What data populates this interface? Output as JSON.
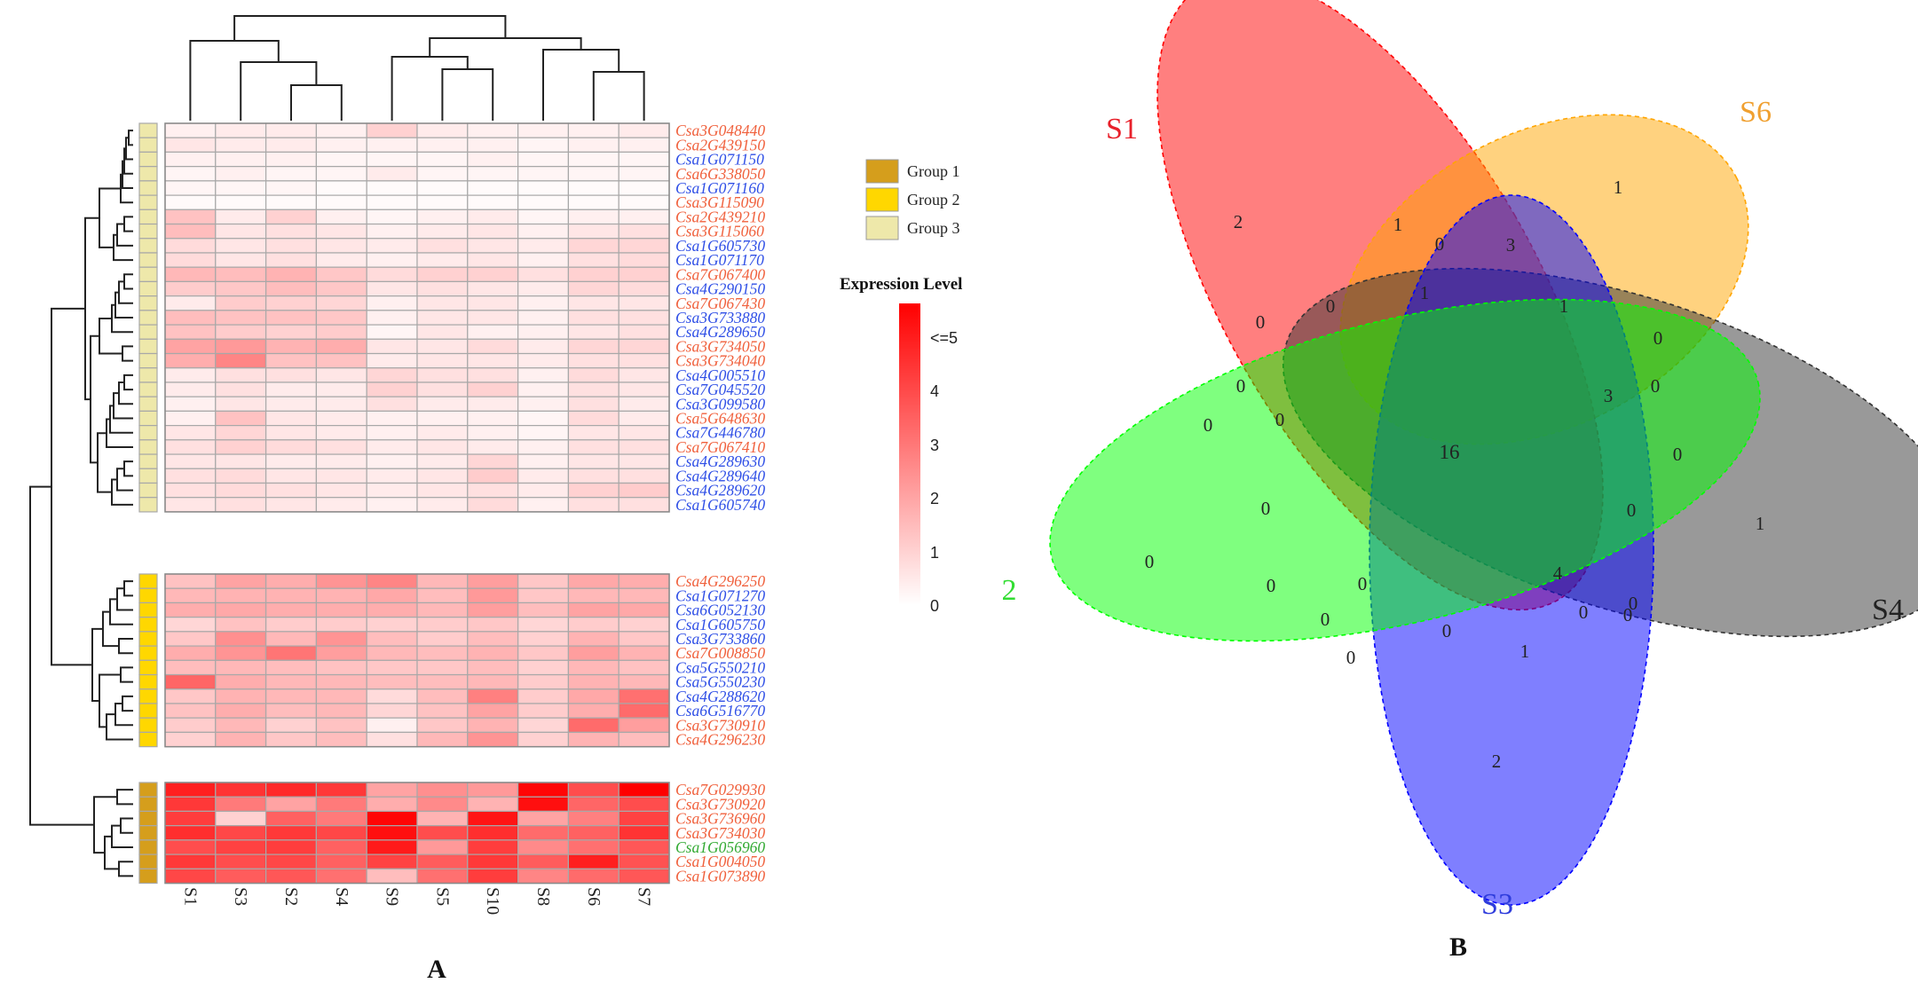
{
  "chart_data": [
    {
      "type": "heatmap",
      "panel_label": "A",
      "columns": [
        "S1",
        "S3",
        "S2",
        "S4",
        "S9",
        "S5",
        "S10",
        "S8",
        "S6",
        "S7"
      ],
      "rows": [
        {
          "gene": "Csa3G048440",
          "group": "Group 3",
          "label_color": "#f0603c",
          "values": [
            0.3,
            0.4,
            0.4,
            0.3,
            0.9,
            0.4,
            0.3,
            0.3,
            0.3,
            0.4
          ]
        },
        {
          "gene": "Csa2G439150",
          "group": "Group 3",
          "label_color": "#f0603c",
          "values": [
            0.5,
            0.4,
            0.4,
            0.3,
            0.3,
            0.3,
            0.3,
            0.2,
            0.3,
            0.3
          ]
        },
        {
          "gene": "Csa1G071150",
          "group": "Group 3",
          "label_color": "#2f4fe6",
          "values": [
            0.3,
            0.3,
            0.3,
            0.2,
            0.2,
            0.2,
            0.3,
            0.2,
            0.2,
            0.2
          ]
        },
        {
          "gene": "Csa6G338050",
          "group": "Group 3",
          "label_color": "#f0603c",
          "values": [
            0.2,
            0.3,
            0.2,
            0.2,
            0.4,
            0.2,
            0.2,
            0.2,
            0.2,
            0.2
          ]
        },
        {
          "gene": "Csa1G071160",
          "group": "Group 3",
          "label_color": "#2f4fe6",
          "values": [
            0.2,
            0.2,
            0.2,
            0.1,
            0.1,
            0.1,
            0.1,
            0.1,
            0.1,
            0.1
          ]
        },
        {
          "gene": "Csa3G115090",
          "group": "Group 3",
          "label_color": "#f0603c",
          "values": [
            0.1,
            0.1,
            0.1,
            0.1,
            0.1,
            0.1,
            0.1,
            0.1,
            0.1,
            0.1
          ]
        },
        {
          "gene": "Csa2G439210",
          "group": "Group 3",
          "label_color": "#f0603c",
          "values": [
            1.2,
            0.4,
            0.9,
            0.3,
            0.2,
            0.3,
            0.4,
            0.2,
            0.3,
            0.3
          ]
        },
        {
          "gene": "Csa3G115060",
          "group": "Group 3",
          "label_color": "#f0603c",
          "values": [
            1.3,
            0.5,
            0.6,
            0.5,
            0.3,
            0.4,
            0.5,
            0.3,
            0.5,
            0.6
          ]
        },
        {
          "gene": "Csa1G605730",
          "group": "Group 3",
          "label_color": "#2f4fe6",
          "values": [
            0.7,
            0.5,
            0.6,
            0.5,
            0.4,
            0.6,
            0.5,
            0.4,
            0.8,
            0.8
          ]
        },
        {
          "gene": "Csa1G071170",
          "group": "Group 3",
          "label_color": "#2f4fe6",
          "values": [
            0.7,
            0.5,
            0.6,
            0.4,
            0.3,
            0.4,
            0.5,
            0.3,
            0.6,
            0.7
          ]
        },
        {
          "gene": "Csa7G067400",
          "group": "Group 3",
          "label_color": "#f0603c",
          "values": [
            1.4,
            1.3,
            1.5,
            1.1,
            0.7,
            0.9,
            0.9,
            0.6,
            0.9,
            0.9
          ]
        },
        {
          "gene": "Csa4G290150",
          "group": "Group 3",
          "label_color": "#2f4fe6",
          "values": [
            1.0,
            1.1,
            1.3,
            1.1,
            0.5,
            0.6,
            0.5,
            0.4,
            0.8,
            0.7
          ]
        },
        {
          "gene": "Csa7G067430",
          "group": "Group 3",
          "label_color": "#f0603c",
          "values": [
            0.4,
            1.0,
            0.9,
            0.8,
            0.3,
            0.5,
            0.5,
            0.3,
            0.5,
            0.5
          ]
        },
        {
          "gene": "Csa3G733880",
          "group": "Group 3",
          "label_color": "#2f4fe6",
          "values": [
            1.3,
            1.2,
            1.2,
            1.1,
            0.3,
            0.5,
            0.5,
            0.3,
            0.6,
            0.6
          ]
        },
        {
          "gene": "Csa4G289650",
          "group": "Group 3",
          "label_color": "#2f4fe6",
          "values": [
            1.2,
            1.0,
            0.9,
            1.0,
            0.2,
            0.5,
            0.3,
            0.3,
            0.5,
            0.6
          ]
        },
        {
          "gene": "Csa3G734050",
          "group": "Group 3",
          "label_color": "#f0603c",
          "values": [
            1.8,
            2.0,
            1.5,
            1.6,
            0.5,
            0.5,
            0.7,
            0.4,
            0.8,
            0.8
          ]
        },
        {
          "gene": "Csa3G734040",
          "group": "Group 3",
          "label_color": "#f0603c",
          "values": [
            1.6,
            2.4,
            1.2,
            1.2,
            0.4,
            0.5,
            0.5,
            0.4,
            0.6,
            0.6
          ]
        },
        {
          "gene": "Csa4G005510",
          "group": "Group 3",
          "label_color": "#2f4fe6",
          "values": [
            0.4,
            0.6,
            0.6,
            0.5,
            0.8,
            0.6,
            0.6,
            0.3,
            0.7,
            0.5
          ]
        },
        {
          "gene": "Csa7G045520",
          "group": "Group 3",
          "label_color": "#2f4fe6",
          "values": [
            0.4,
            0.6,
            0.4,
            0.4,
            0.9,
            0.6,
            0.9,
            0.3,
            0.6,
            0.5
          ]
        },
        {
          "gene": "Csa3G099580",
          "group": "Group 3",
          "label_color": "#2f4fe6",
          "values": [
            0.3,
            0.5,
            0.4,
            0.4,
            0.6,
            0.4,
            0.4,
            0.3,
            0.6,
            0.4
          ]
        },
        {
          "gene": "Csa5G648630",
          "group": "Group 3",
          "label_color": "#f0603c",
          "values": [
            0.3,
            1.2,
            0.5,
            0.4,
            0.3,
            0.3,
            0.3,
            0.2,
            0.7,
            0.4
          ]
        },
        {
          "gene": "Csa7G446780",
          "group": "Group 3",
          "label_color": "#2f4fe6",
          "values": [
            0.5,
            0.8,
            0.5,
            0.4,
            0.3,
            0.4,
            0.3,
            0.2,
            0.5,
            0.5
          ]
        },
        {
          "gene": "Csa7G067410",
          "group": "Group 3",
          "label_color": "#f0603c",
          "values": [
            0.6,
            0.9,
            0.7,
            0.6,
            0.4,
            0.5,
            0.4,
            0.3,
            0.6,
            0.6
          ]
        },
        {
          "gene": "Csa4G289630",
          "group": "Group 3",
          "label_color": "#2f4fe6",
          "values": [
            0.5,
            0.5,
            0.4,
            0.4,
            0.3,
            0.4,
            0.8,
            0.3,
            0.5,
            0.5
          ]
        },
        {
          "gene": "Csa4G289640",
          "group": "Group 3",
          "label_color": "#2f4fe6",
          "values": [
            0.6,
            0.7,
            0.5,
            0.5,
            0.4,
            0.5,
            1.0,
            0.4,
            0.6,
            0.6
          ]
        },
        {
          "gene": "Csa4G289620",
          "group": "Group 3",
          "label_color": "#2f4fe6",
          "values": [
            0.6,
            0.7,
            0.6,
            0.5,
            0.4,
            0.5,
            0.6,
            0.4,
            0.9,
            1.0
          ]
        },
        {
          "gene": "Csa1G605740",
          "group": "Group 3",
          "label_color": "#2f4fe6",
          "values": [
            0.5,
            0.6,
            0.5,
            0.4,
            0.3,
            0.4,
            0.7,
            0.3,
            0.6,
            0.6
          ]
        },
        {
          "gene": "Csa4G296250",
          "group": "Group 2",
          "label_color": "#f0603c",
          "values": [
            1.2,
            1.8,
            1.6,
            2.1,
            2.4,
            1.4,
            1.9,
            1.1,
            1.7,
            1.6
          ]
        },
        {
          "gene": "Csa1G071270",
          "group": "Group 2",
          "label_color": "#2f4fe6",
          "values": [
            1.4,
            1.5,
            1.5,
            1.5,
            1.7,
            1.3,
            2.0,
            1.1,
            1.4,
            1.4
          ]
        },
        {
          "gene": "Csa6G052130",
          "group": "Group 2",
          "label_color": "#2f4fe6",
          "values": [
            1.6,
            1.7,
            1.6,
            1.6,
            1.6,
            1.4,
            1.9,
            1.3,
            1.8,
            1.7
          ]
        },
        {
          "gene": "Csa1G605750",
          "group": "Group 2",
          "label_color": "#2f4fe6",
          "values": [
            0.8,
            1.2,
            1.0,
            1.0,
            0.9,
            1.0,
            1.1,
            0.8,
            1.0,
            0.9
          ]
        },
        {
          "gene": "Csa3G733860",
          "group": "Group 2",
          "label_color": "#2f4fe6",
          "values": [
            1.1,
            2.2,
            1.4,
            2.1,
            1.3,
            1.0,
            1.3,
            0.9,
            1.5,
            1.1
          ]
        },
        {
          "gene": "Csa7G008850",
          "group": "Group 2",
          "label_color": "#f0603c",
          "values": [
            1.6,
            2.1,
            2.7,
            1.9,
            1.4,
            1.3,
            1.5,
            1.1,
            1.9,
            1.5
          ]
        },
        {
          "gene": "Csa5G550210",
          "group": "Group 2",
          "label_color": "#2f4fe6",
          "values": [
            1.3,
            1.4,
            1.3,
            1.2,
            1.1,
            1.1,
            1.3,
            0.9,
            1.4,
            1.2
          ]
        },
        {
          "gene": "Csa5G550230",
          "group": "Group 2",
          "label_color": "#2f4fe6",
          "values": [
            3.0,
            1.6,
            1.4,
            1.4,
            1.3,
            1.3,
            1.4,
            1.0,
            1.5,
            1.4
          ]
        },
        {
          "gene": "Csa4G288620",
          "group": "Group 2",
          "label_color": "#2f4fe6",
          "values": [
            1.1,
            1.5,
            1.4,
            1.4,
            0.7,
            1.3,
            2.5,
            1.0,
            1.7,
            2.8
          ]
        },
        {
          "gene": "Csa6G516770",
          "group": "Group 2",
          "label_color": "#2f4fe6",
          "values": [
            1.2,
            1.6,
            1.3,
            1.4,
            0.8,
            1.2,
            1.8,
            1.0,
            1.6,
            2.9
          ]
        },
        {
          "gene": "Csa3G730910",
          "group": "Group 2",
          "label_color": "#f0603c",
          "values": [
            1.0,
            1.4,
            0.9,
            1.2,
            0.3,
            1.1,
            1.5,
            0.8,
            2.9,
            1.9
          ]
        },
        {
          "gene": "Csa4G296230",
          "group": "Group 2",
          "label_color": "#f0603c",
          "values": [
            0.9,
            1.5,
            1.1,
            1.3,
            0.6,
            1.4,
            2.1,
            0.9,
            1.5,
            1.3
          ]
        },
        {
          "gene": "Csa7G029930",
          "group": "Group 1",
          "label_color": "#f0603c",
          "values": [
            4.4,
            4.0,
            4.2,
            3.9,
            1.8,
            2.2,
            2.0,
            4.9,
            3.5,
            5.0
          ]
        },
        {
          "gene": "Csa3G730920",
          "group": "Group 1",
          "label_color": "#f0603c",
          "values": [
            3.9,
            2.6,
            1.8,
            2.6,
            1.6,
            2.3,
            1.5,
            4.7,
            3.0,
            3.5
          ]
        },
        {
          "gene": "Csa3G736960",
          "group": "Group 1",
          "label_color": "#f0603c",
          "values": [
            3.8,
            0.9,
            3.1,
            2.6,
            4.9,
            1.5,
            4.6,
            1.8,
            2.5,
            3.7
          ]
        },
        {
          "gene": "Csa3G734030",
          "group": "Group 1",
          "label_color": "#f0603c",
          "values": [
            4.1,
            3.6,
            3.9,
            3.6,
            4.7,
            3.5,
            4.1,
            2.9,
            3.1,
            4.0
          ]
        },
        {
          "gene": "Csa1G056960",
          "group": "Group 1",
          "label_color": "#33aa33",
          "values": [
            3.5,
            3.7,
            3.8,
            3.1,
            4.5,
            2.0,
            3.8,
            2.3,
            2.8,
            3.3
          ]
        },
        {
          "gene": "Csa1G004050",
          "group": "Group 1",
          "label_color": "#f0603c",
          "values": [
            3.9,
            3.5,
            3.6,
            3.1,
            3.7,
            3.2,
            3.9,
            3.2,
            4.4,
            3.4
          ]
        },
        {
          "gene": "Csa1G073890",
          "group": "Group 1",
          "label_color": "#f0603c",
          "values": [
            3.6,
            3.2,
            3.3,
            2.8,
            1.3,
            2.8,
            3.8,
            2.4,
            2.9,
            3.3
          ]
        }
      ],
      "legend": {
        "groups": [
          {
            "name": "Group 1",
            "color": "#d59e1c"
          },
          {
            "name": "Group 2",
            "color": "#ffd700"
          },
          {
            "name": "Group 3",
            "color": "#eee8aa"
          }
        ],
        "color_scale_title": "Expression Level",
        "color_scale_ticks": [
          "<=5",
          "4",
          "3",
          "2",
          "1",
          "0"
        ],
        "scale_min": 0,
        "scale_max": 5,
        "color_low": "#ffffff",
        "color_high": "#ff0000"
      }
    },
    {
      "type": "venn",
      "panel_label": "B",
      "sets": [
        {
          "name": "S1",
          "color": "#ff0000",
          "label_color": "#e8202a"
        },
        {
          "name": "S6",
          "color": "#ffa500",
          "label_color": "#f0a030"
        },
        {
          "name": "S4",
          "color": "#333333",
          "label_color": "#222222"
        },
        {
          "name": "S3",
          "color": "#0000ff",
          "label_color": "#2e3cdc"
        },
        {
          "name": "2",
          "color": "#00ff00",
          "label_color": "#33dd33"
        }
      ],
      "region_counts": [
        "2",
        "1",
        "1",
        "0",
        "3",
        "1",
        "1",
        "0",
        "0",
        "0",
        "0",
        "0",
        "0",
        "3",
        "0",
        "0",
        "16",
        "0",
        "0",
        "1",
        "0",
        "0",
        "0",
        "4",
        "0",
        "0",
        "0",
        "0",
        "0",
        "0",
        "1",
        "2"
      ]
    }
  ]
}
